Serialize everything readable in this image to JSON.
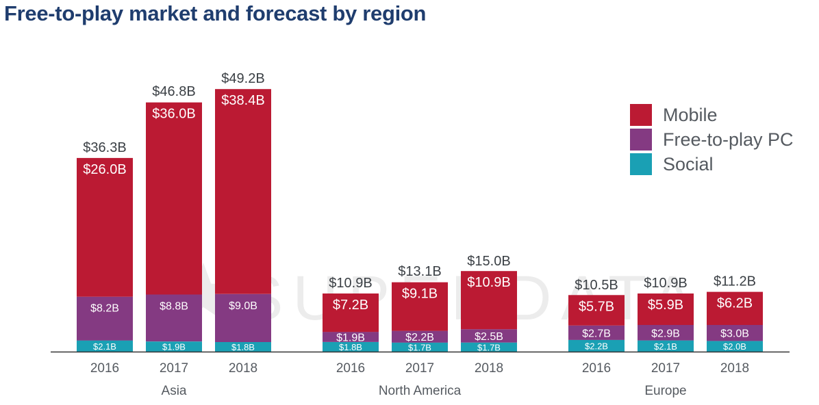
{
  "title": "Free-to-play market and forecast by region",
  "watermark": "SUPERDATA",
  "colors": {
    "Mobile": "#bb1a33",
    "Free-to-play PC": "#843a82",
    "Social": "#1aa0b4",
    "axis": "#333333",
    "tick_text": "#555a60",
    "total_text": "#3a3f44",
    "watermark": "#dddddd"
  },
  "chart_data": {
    "type": "bar",
    "stacked": true,
    "title": "Free-to-play market and forecast by region",
    "legend_position": "right",
    "grid": false,
    "unit": "$B",
    "groups": [
      {
        "region": "Asia",
        "bars": [
          {
            "year": "2016",
            "total": 36.3,
            "total_label": "$36.3B",
            "values": {
              "Social": 2.1,
              "Free-to-play PC": 8.2,
              "Mobile": 26.0
            },
            "labels": {
              "Social": "$2.1B",
              "Free-to-play PC": "$8.2B",
              "Mobile": "$26.0B"
            }
          },
          {
            "year": "2017",
            "total": 46.8,
            "total_label": "$46.8B",
            "values": {
              "Social": 1.9,
              "Free-to-play PC": 8.8,
              "Mobile": 36.0
            },
            "labels": {
              "Social": "$1.9B",
              "Free-to-play PC": "$8.8B",
              "Mobile": "$36.0B"
            }
          },
          {
            "year": "2018",
            "total": 49.2,
            "total_label": "$49.2B",
            "values": {
              "Social": 1.8,
              "Free-to-play PC": 9.0,
              "Mobile": 38.4
            },
            "labels": {
              "Social": "$1.8B",
              "Free-to-play PC": "$9.0B",
              "Mobile": "$38.4B"
            }
          }
        ]
      },
      {
        "region": "North America",
        "bars": [
          {
            "year": "2016",
            "total": 10.9,
            "total_label": "$10.9B",
            "values": {
              "Social": 1.8,
              "Free-to-play PC": 1.9,
              "Mobile": 7.2
            },
            "labels": {
              "Social": "$1.8B",
              "Free-to-play PC": "$1.9B",
              "Mobile": "$7.2B"
            }
          },
          {
            "year": "2017",
            "total": 13.1,
            "total_label": "$13.1B",
            "values": {
              "Social": 1.7,
              "Free-to-play PC": 2.2,
              "Mobile": 9.1
            },
            "labels": {
              "Social": "$1.7B",
              "Free-to-play PC": "$2.2B",
              "Mobile": "$9.1B"
            }
          },
          {
            "year": "2018",
            "total": 15.0,
            "total_label": "$15.0B",
            "values": {
              "Social": 1.7,
              "Free-to-play PC": 2.5,
              "Mobile": 10.9
            },
            "labels": {
              "Social": "$1.7B",
              "Free-to-play PC": "$2.5B",
              "Mobile": "$10.9B"
            }
          }
        ]
      },
      {
        "region": "Europe",
        "bars": [
          {
            "year": "2016",
            "total": 10.5,
            "total_label": "$10.5B",
            "values": {
              "Social": 2.2,
              "Free-to-play PC": 2.7,
              "Mobile": 5.7
            },
            "labels": {
              "Social": "$2.2B",
              "Free-to-play PC": "$2.7B",
              "Mobile": "$5.7B"
            }
          },
          {
            "year": "2017",
            "total": 10.9,
            "total_label": "$10.9B",
            "values": {
              "Social": 2.1,
              "Free-to-play PC": 2.9,
              "Mobile": 5.9
            },
            "labels": {
              "Social": "$2.1B",
              "Free-to-play PC": "$2.9B",
              "Mobile": "$5.9B"
            }
          },
          {
            "year": "2018",
            "total": 11.2,
            "total_label": "$11.2B",
            "values": {
              "Social": 2.0,
              "Free-to-play PC": 3.0,
              "Mobile": 6.2
            },
            "labels": {
              "Social": "$2.0B",
              "Free-to-play PC": "$3.0B",
              "Mobile": "$6.2B"
            }
          }
        ]
      }
    ],
    "series": [
      {
        "name": "Mobile"
      },
      {
        "name": "Free-to-play PC"
      },
      {
        "name": "Social"
      }
    ]
  }
}
